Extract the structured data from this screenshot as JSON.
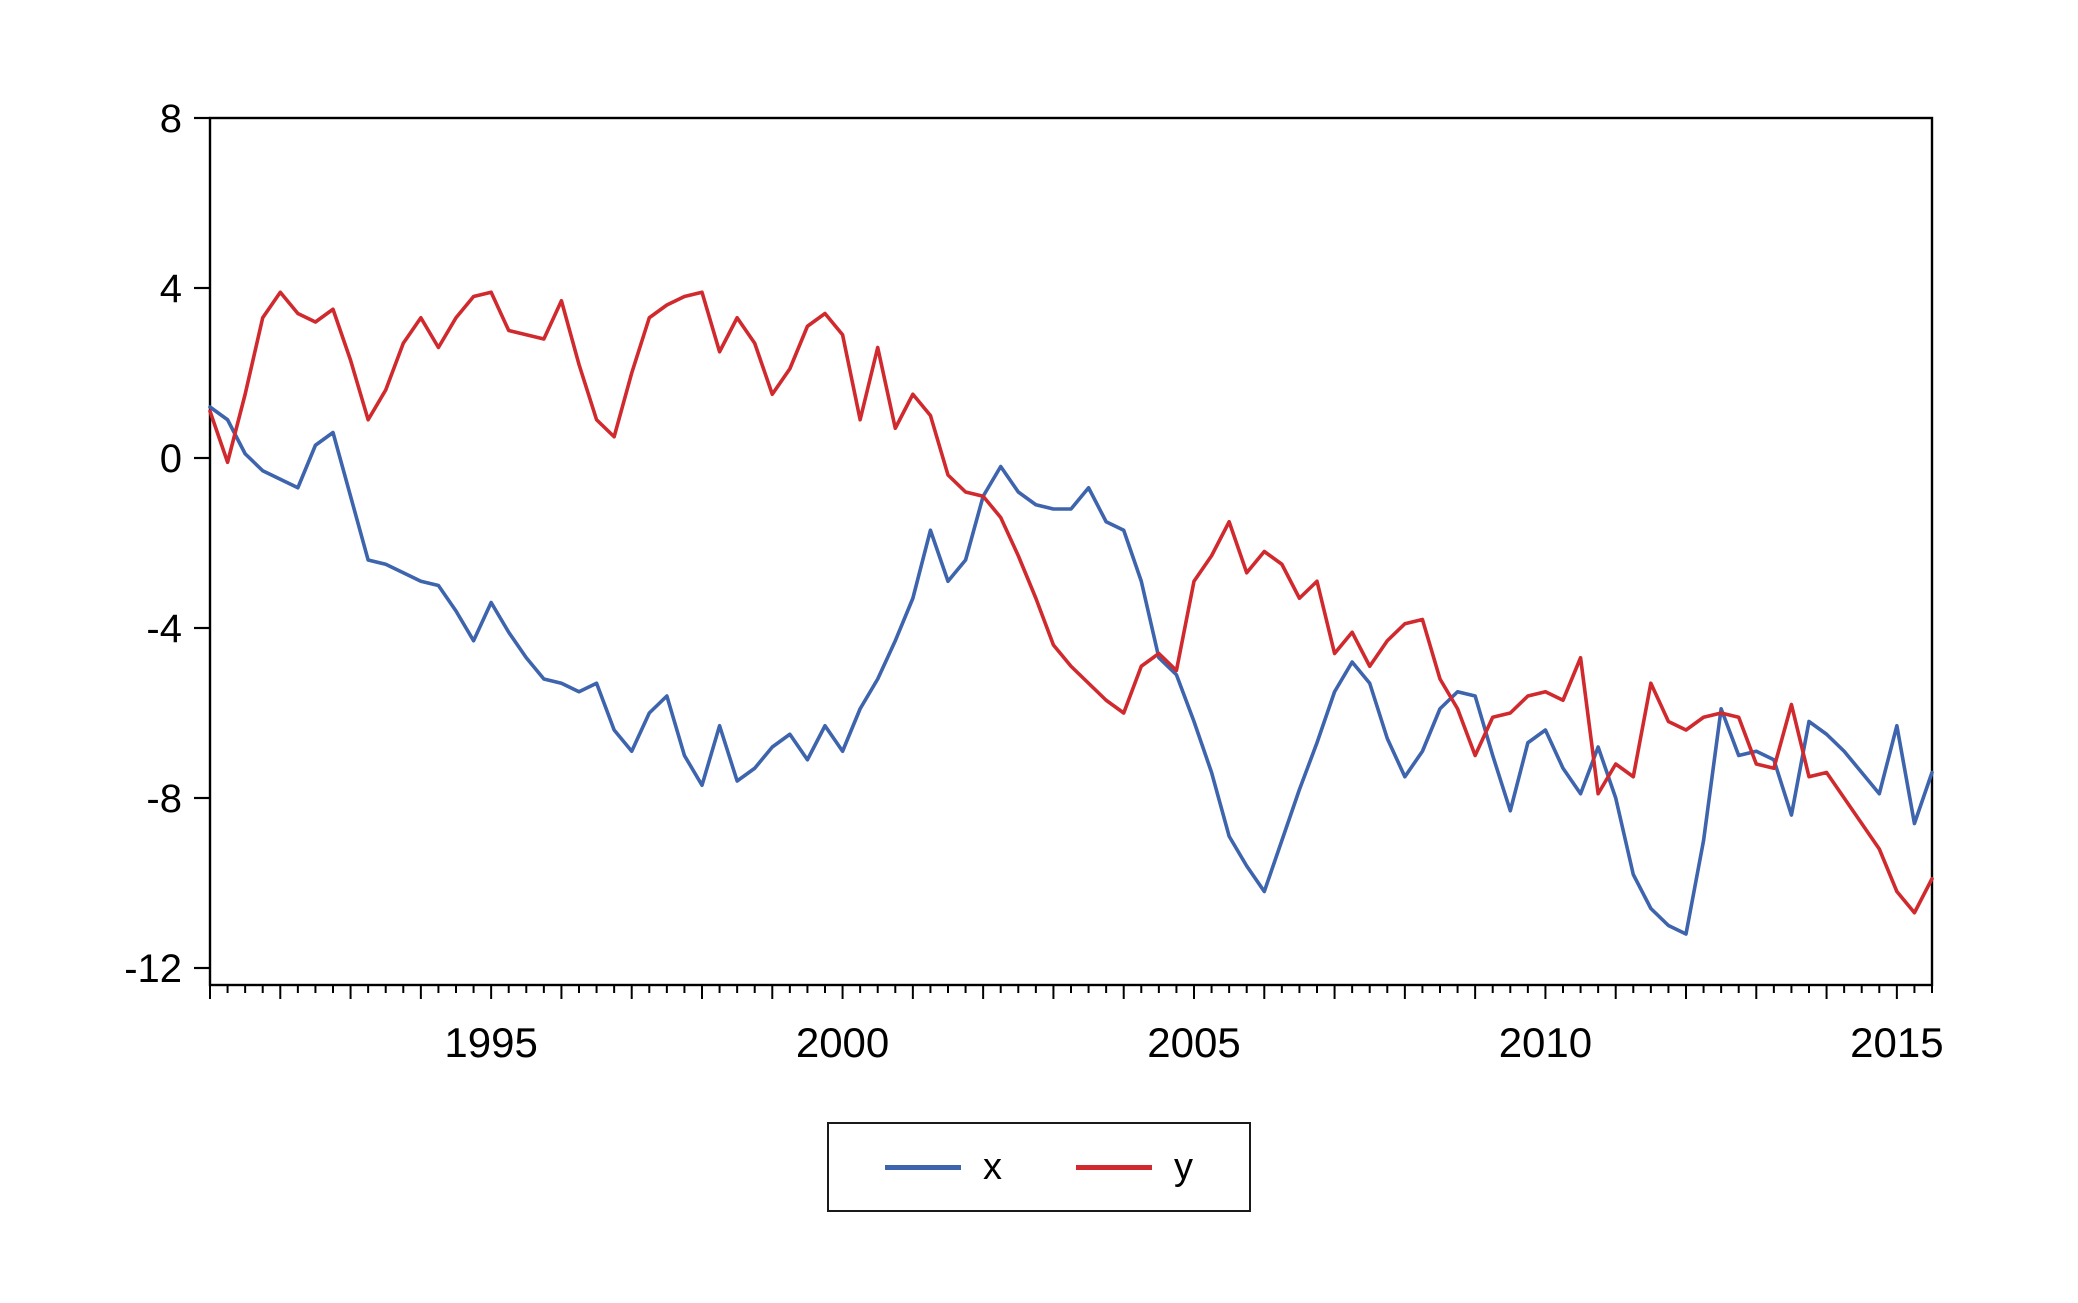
{
  "chart_data": {
    "type": "line",
    "title": "",
    "xlabel": "",
    "ylabel": "",
    "grid": false,
    "frame": true,
    "legend_position": "bottom-center",
    "x_start": 1991.0,
    "x_step": 0.25,
    "x_end": 2015.5,
    "xlim": [
      1991.0,
      2015.5
    ],
    "ylim": [
      -12.4,
      8.0
    ],
    "y_ticks": [
      8,
      4,
      0,
      -4,
      -8,
      -12
    ],
    "x_ticks_labeled": [
      1995,
      2000,
      2005,
      2010,
      2015
    ],
    "series": [
      {
        "name": "x",
        "color": "#3d64ad",
        "values": [
          1.2,
          0.9,
          0.1,
          -0.3,
          -0.5,
          -0.7,
          0.3,
          0.6,
          -0.9,
          -2.4,
          -2.5,
          -2.7,
          -2.9,
          -3.0,
          -3.6,
          -4.3,
          -3.4,
          -4.1,
          -4.7,
          -5.2,
          -5.3,
          -5.5,
          -5.3,
          -6.4,
          -6.9,
          -6.0,
          -5.6,
          -7.0,
          -7.7,
          -6.3,
          -7.6,
          -7.3,
          -6.8,
          -6.5,
          -7.1,
          -6.3,
          -6.9,
          -5.9,
          -5.2,
          -4.3,
          -3.3,
          -1.7,
          -2.9,
          -2.4,
          -0.9,
          -0.2,
          -0.8,
          -1.1,
          -1.2,
          -1.2,
          -0.7,
          -1.5,
          -1.7,
          -2.9,
          -4.7,
          -5.1,
          -6.2,
          -7.4,
          -8.9,
          -9.6,
          -10.2,
          -9.0,
          -7.8,
          -6.7,
          -5.5,
          -4.8,
          -5.3,
          -6.6,
          -7.5,
          -6.9,
          -5.9,
          -5.5,
          -5.6,
          -7.0,
          -8.3,
          -6.7,
          -6.4,
          -7.3,
          -7.9,
          -6.8,
          -8.0,
          -9.8,
          -10.6,
          -11.0,
          -11.2,
          -9.0,
          -5.9,
          -7.0,
          -6.9,
          -7.1,
          -8.4,
          -6.2,
          -6.5,
          -6.9,
          -7.4,
          -7.9,
          -6.3,
          -8.6,
          -7.4
        ]
      },
      {
        "name": "y",
        "color": "#d02a2e",
        "values": [
          1.1,
          -0.1,
          1.5,
          3.3,
          3.9,
          3.4,
          3.2,
          3.5,
          2.3,
          0.9,
          1.6,
          2.7,
          3.3,
          2.6,
          3.3,
          3.8,
          3.9,
          3.0,
          2.9,
          2.8,
          3.7,
          2.2,
          0.9,
          0.5,
          2.0,
          3.3,
          3.6,
          3.8,
          3.9,
          2.5,
          3.3,
          2.7,
          1.5,
          2.1,
          3.1,
          3.4,
          2.9,
          0.9,
          2.6,
          0.7,
          1.5,
          1.0,
          -0.4,
          -0.8,
          -0.9,
          -1.4,
          -2.3,
          -3.3,
          -4.4,
          -4.9,
          -5.3,
          -5.7,
          -6.0,
          -4.9,
          -4.6,
          -5.0,
          -2.9,
          -2.3,
          -1.5,
          -2.7,
          -2.2,
          -2.5,
          -3.3,
          -2.9,
          -4.6,
          -4.1,
          -4.9,
          -4.3,
          -3.9,
          -3.8,
          -5.2,
          -5.9,
          -7.0,
          -6.1,
          -6.0,
          -5.6,
          -5.5,
          -5.7,
          -4.7,
          -7.9,
          -7.2,
          -7.5,
          -5.3,
          -6.2,
          -6.4,
          -6.1,
          -6.0,
          -6.1,
          -7.2,
          -7.3,
          -5.8,
          -7.5,
          -7.4,
          -8.0,
          -8.6,
          -9.2,
          -10.2,
          -10.7,
          -9.9
        ]
      }
    ]
  }
}
